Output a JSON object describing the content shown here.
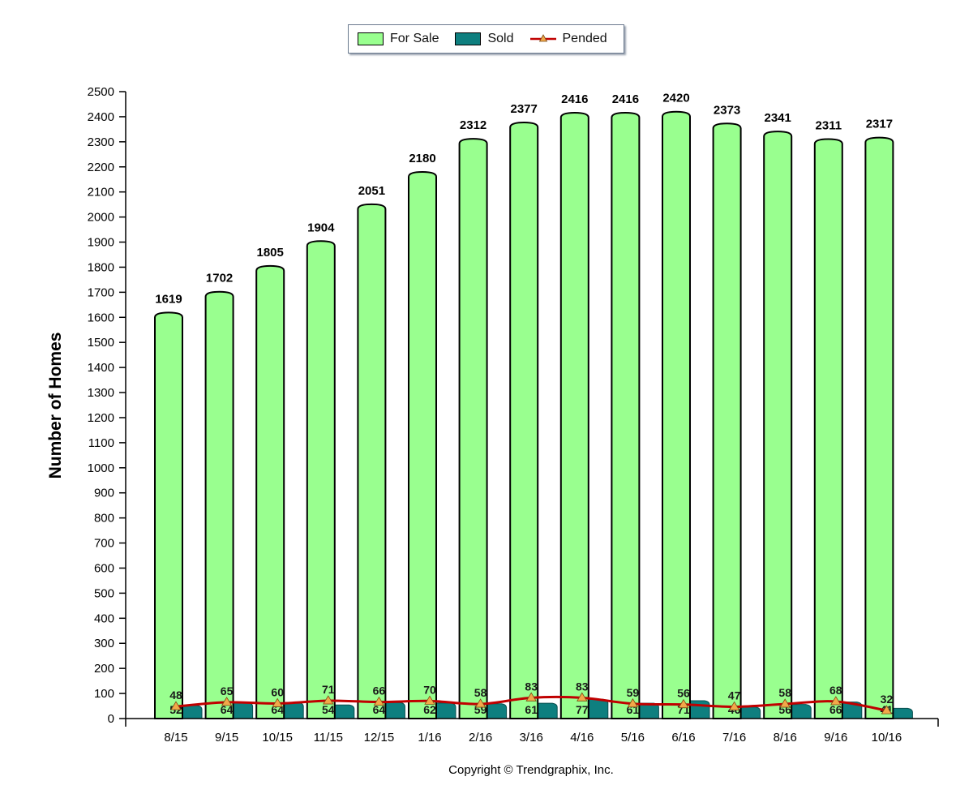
{
  "chart_data": {
    "type": "bar",
    "categories": [
      "8/15",
      "9/15",
      "10/15",
      "11/15",
      "12/15",
      "1/16",
      "2/16",
      "3/16",
      "4/16",
      "5/16",
      "6/16",
      "7/16",
      "8/16",
      "9/16",
      "10/16"
    ],
    "series": [
      {
        "name": "For Sale",
        "type": "bar",
        "color": "#99ff8f",
        "values": [
          1619,
          1702,
          1805,
          1904,
          2051,
          2180,
          2312,
          2377,
          2416,
          2416,
          2420,
          2373,
          2341,
          2311,
          2317
        ]
      },
      {
        "name": "Sold",
        "type": "bar",
        "color": "#0e7f7f",
        "values": [
          52,
          64,
          64,
          54,
          64,
          62,
          59,
          61,
          77,
          61,
          71,
          46,
          56,
          66,
          41
        ]
      },
      {
        "name": "Pended",
        "type": "line",
        "color": "#c00000",
        "marker_color": "#f2a84a",
        "values": [
          48,
          65,
          60,
          71,
          66,
          70,
          58,
          83,
          83,
          59,
          56,
          47,
          58,
          68,
          32
        ]
      }
    ],
    "ylabel": "Number of Homes",
    "xlabel": "",
    "ylim": [
      0,
      2500
    ],
    "yticks": [
      0,
      100,
      200,
      300,
      400,
      500,
      600,
      700,
      800,
      900,
      1000,
      1100,
      1200,
      1300,
      1400,
      1500,
      1600,
      1700,
      1800,
      1900,
      2000,
      2100,
      2200,
      2300,
      2400,
      2500
    ],
    "grid": false,
    "legend_position": "top-center"
  },
  "legend": {
    "for_sale": "For Sale",
    "sold": "Sold",
    "pended": "Pended"
  },
  "footer": {
    "copyright": "Copyright © Trendgraphix, Inc."
  }
}
